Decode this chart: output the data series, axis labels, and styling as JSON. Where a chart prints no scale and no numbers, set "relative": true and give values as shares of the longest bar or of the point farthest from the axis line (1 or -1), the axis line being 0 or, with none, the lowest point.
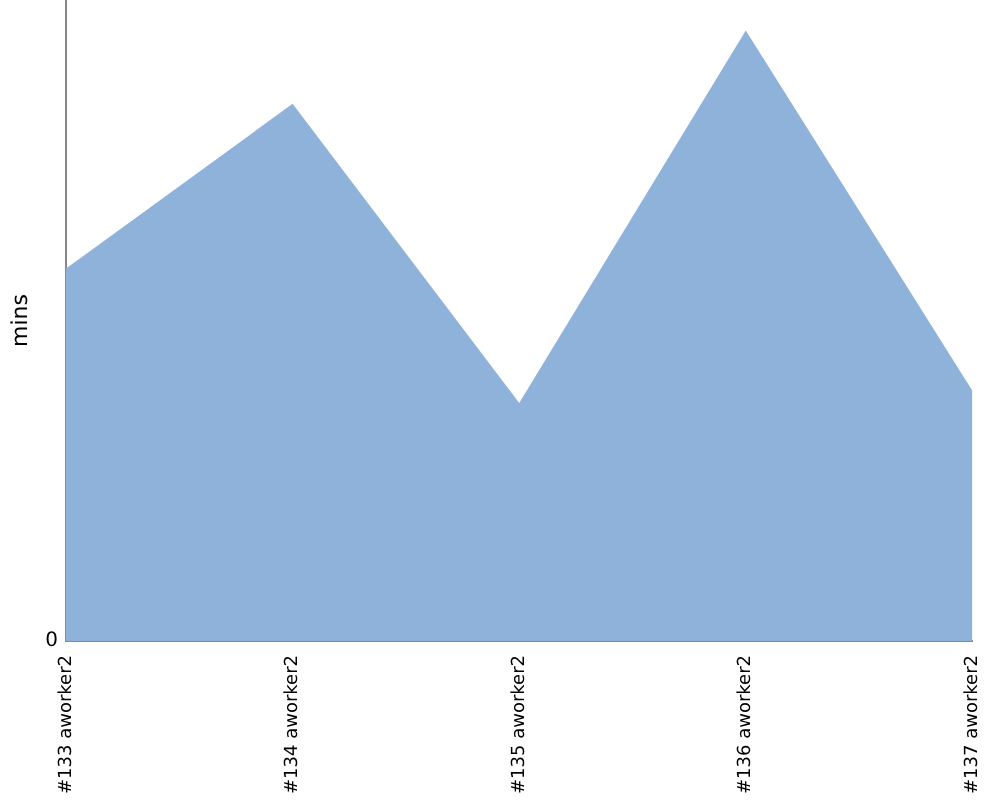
{
  "chart_data": {
    "type": "area",
    "ylabel": "mins",
    "relative": true,
    "categories": [
      "#133 aworker2",
      "#134 aworker2",
      "#135 aworker2",
      "#136 aworker2",
      "#137 aworker2"
    ],
    "series": [
      {
        "color": "#8fb2db",
        "values": [
          0.61,
          0.88,
          0.39,
          1,
          0.41
        ]
      }
    ],
    "annotations": [
      "0"
    ],
    "grid": false,
    "legend": false
  }
}
